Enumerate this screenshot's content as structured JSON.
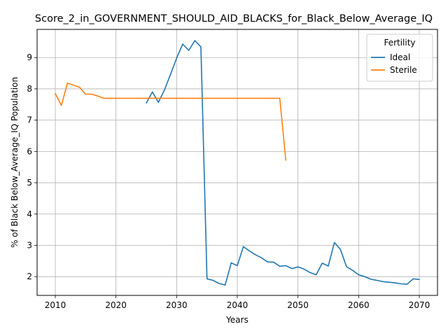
{
  "chart_data": {
    "type": "line",
    "title": "Score_2_in_GOVERNMENT_SHOULD_AID_BLACKS_for_Black_Below_Average_IQ",
    "xlabel": "Years",
    "ylabel": "% of Black Below_Average_IQ Population",
    "xlim": [
      2007,
      2073
    ],
    "ylim": [
      1.4,
      9.9
    ],
    "xticks": [
      2010,
      2020,
      2030,
      2040,
      2050,
      2060,
      2070
    ],
    "yticks": [
      2,
      3,
      4,
      5,
      6,
      7,
      8,
      9
    ],
    "grid": true,
    "legend": {
      "title": "Fertility",
      "placement": "top-right"
    },
    "series": [
      {
        "name": "Ideal",
        "color": "#1f77b4",
        "points": [
          [
            2025,
            7.55
          ],
          [
            2026,
            7.9
          ],
          [
            2027,
            7.57
          ],
          [
            2028,
            7.97
          ],
          [
            2029,
            8.47
          ],
          [
            2030,
            8.98
          ],
          [
            2031,
            9.43
          ],
          [
            2032,
            9.23
          ],
          [
            2033,
            9.54
          ],
          [
            2034,
            9.34
          ],
          [
            2035,
            1.93
          ],
          [
            2036,
            1.88
          ],
          [
            2037,
            1.78
          ],
          [
            2038,
            1.73
          ],
          [
            2039,
            2.44
          ],
          [
            2040,
            2.35
          ],
          [
            2041,
            2.96
          ],
          [
            2042,
            2.82
          ],
          [
            2043,
            2.7
          ],
          [
            2044,
            2.6
          ],
          [
            2045,
            2.47
          ],
          [
            2046,
            2.46
          ],
          [
            2047,
            2.33
          ],
          [
            2048,
            2.35
          ],
          [
            2049,
            2.26
          ],
          [
            2050,
            2.31
          ],
          [
            2051,
            2.24
          ],
          [
            2052,
            2.13
          ],
          [
            2053,
            2.06
          ],
          [
            2054,
            2.43
          ],
          [
            2055,
            2.34
          ],
          [
            2056,
            3.09
          ],
          [
            2057,
            2.87
          ],
          [
            2058,
            2.32
          ],
          [
            2059,
            2.2
          ],
          [
            2060,
            2.06
          ],
          [
            2061,
            2.0
          ],
          [
            2062,
            1.92
          ],
          [
            2063,
            1.88
          ],
          [
            2064,
            1.84
          ],
          [
            2065,
            1.82
          ],
          [
            2066,
            1.8
          ],
          [
            2067,
            1.77
          ],
          [
            2068,
            1.76
          ],
          [
            2069,
            1.93
          ],
          [
            2070,
            1.91
          ]
        ]
      },
      {
        "name": "Sterile",
        "color": "#ff7f0e",
        "points": [
          [
            2010,
            7.85
          ],
          [
            2011,
            7.47
          ],
          [
            2012,
            8.18
          ],
          [
            2013,
            8.12
          ],
          [
            2014,
            8.05
          ],
          [
            2015,
            7.83
          ],
          [
            2016,
            7.83
          ],
          [
            2017,
            7.77
          ],
          [
            2018,
            7.7
          ],
          [
            2019,
            7.7
          ],
          [
            2020,
            7.7
          ],
          [
            2021,
            7.7
          ],
          [
            2022,
            7.7
          ],
          [
            2023,
            7.7
          ],
          [
            2024,
            7.7
          ],
          [
            2025,
            7.7
          ],
          [
            2026,
            7.7
          ],
          [
            2027,
            7.7
          ],
          [
            2028,
            7.7
          ],
          [
            2029,
            7.7
          ],
          [
            2030,
            7.7
          ],
          [
            2031,
            7.7
          ],
          [
            2032,
            7.7
          ],
          [
            2033,
            7.7
          ],
          [
            2034,
            7.7
          ],
          [
            2035,
            7.7
          ],
          [
            2036,
            7.7
          ],
          [
            2037,
            7.7
          ],
          [
            2038,
            7.7
          ],
          [
            2039,
            7.7
          ],
          [
            2040,
            7.7
          ],
          [
            2041,
            7.7
          ],
          [
            2042,
            7.7
          ],
          [
            2043,
            7.7
          ],
          [
            2044,
            7.7
          ],
          [
            2045,
            7.7
          ],
          [
            2046,
            7.7
          ],
          [
            2047,
            7.7
          ],
          [
            2048,
            5.72
          ]
        ]
      }
    ]
  }
}
